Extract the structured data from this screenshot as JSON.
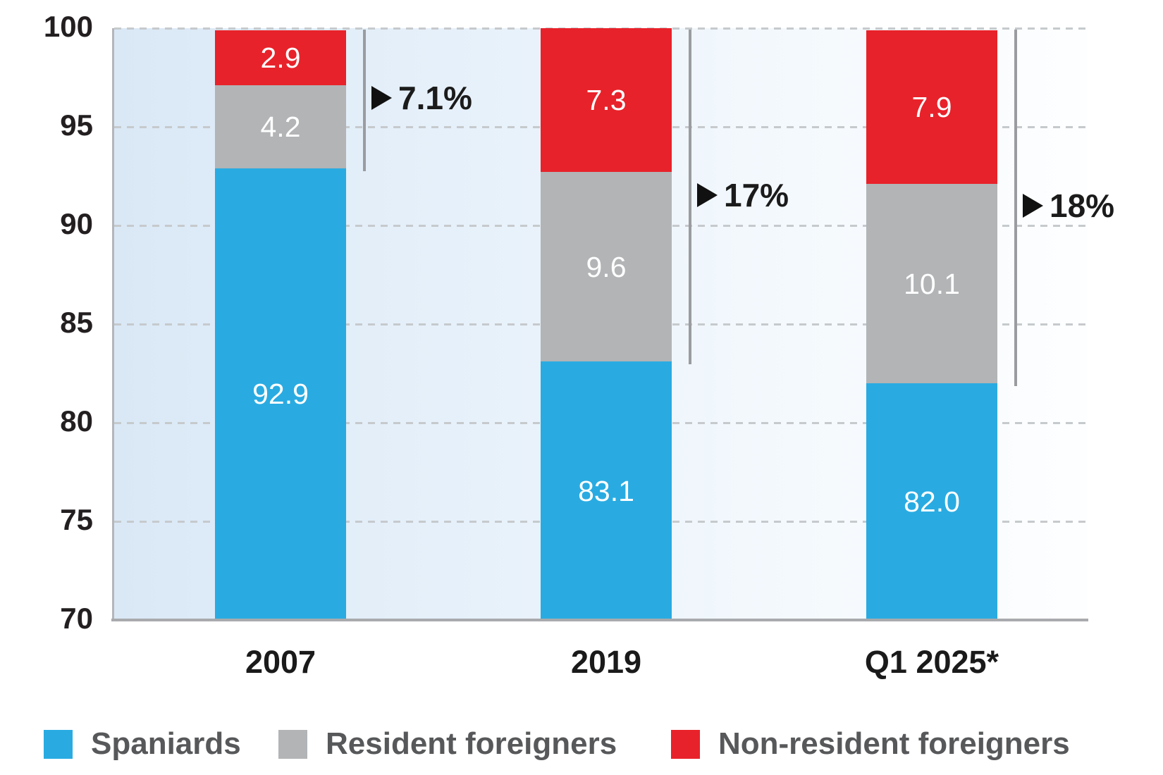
{
  "chart_data": {
    "type": "bar",
    "stacked": true,
    "title": "",
    "xlabel": "",
    "ylabel": "",
    "categories": [
      "2007",
      "2019",
      "Q1 2025*"
    ],
    "series": [
      {
        "name": "Spaniards",
        "color": "#29abe2",
        "values": [
          92.9,
          83.1,
          82.0
        ]
      },
      {
        "name": "Resident foreigners",
        "color": "#b2b4b6",
        "values": [
          4.2,
          9.6,
          10.1
        ]
      },
      {
        "name": "Non-resident foreigners",
        "color": "#e8222a",
        "values": [
          2.9,
          7.3,
          7.9
        ]
      }
    ],
    "annotations": [
      {
        "label": "7.1%",
        "category_index": 0,
        "from": 92.9,
        "to": 100
      },
      {
        "label": "17%",
        "category_index": 1,
        "from": 83.1,
        "to": 100
      },
      {
        "label": "18%",
        "category_index": 2,
        "from": 82.0,
        "to": 100
      }
    ],
    "ylim": [
      70,
      100
    ],
    "yticks": [
      70,
      75,
      80,
      85,
      90,
      95,
      100
    ],
    "grid": "dashed-horizontal",
    "legend_position": "bottom",
    "colors": {
      "plot_bg_gradient_left": "#dae8f6",
      "plot_bg_gradient_right": "#fdfeff",
      "axis": "#a8aaad",
      "gridline": "#c6cacd",
      "bracket": "#9a9c9f",
      "annotation_text": "#1b1b1b",
      "legend_text": "#57585a",
      "bar_value_text": "#ffffff",
      "tick_text": "#231f20"
    }
  }
}
